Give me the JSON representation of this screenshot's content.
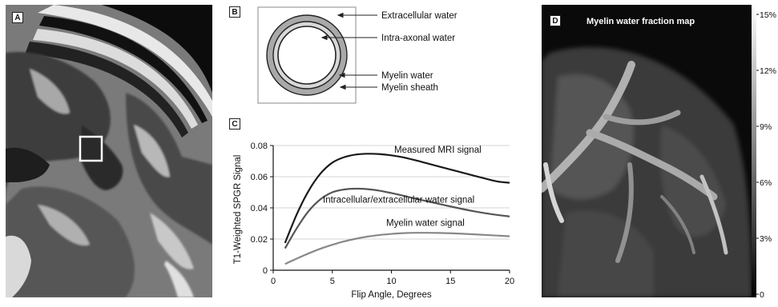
{
  "panels": {
    "a": {
      "label": "A"
    },
    "b": {
      "label": "B",
      "annotations": {
        "extracellular": "Extracellular water",
        "intra_axonal": "Intra-axonal water",
        "myelin_water": "Myelin water",
        "myelin_sheath": "Myelin sheath"
      }
    },
    "c": {
      "label": "C"
    },
    "d": {
      "label": "D",
      "title": "Myelin water fraction map"
    }
  },
  "colorbar": {
    "ticks": [
      "15%",
      "12%",
      "9%",
      "6%",
      "3%",
      "0"
    ]
  },
  "chart_data": {
    "type": "line",
    "xlabel": "Flip Angle, Degrees",
    "ylabel": "T1-Weighted SPGR Signal",
    "xlim": [
      0,
      20
    ],
    "ylim": [
      0,
      0.08
    ],
    "xticks": [
      "0",
      "5",
      "10",
      "15",
      "20"
    ],
    "yticks": [
      "0",
      "0.02",
      "0.04",
      "0.06",
      "0.08"
    ],
    "grid": "horizontal",
    "series": [
      {
        "name": "Measured MRI signal",
        "color": "#1a1a1a",
        "x": [
          1,
          2,
          3,
          4,
          5,
          6,
          7,
          8,
          9,
          10,
          11,
          12,
          13,
          14,
          15,
          16,
          17,
          18,
          19,
          20
        ],
        "y": [
          0.0175,
          0.036,
          0.051,
          0.062,
          0.069,
          0.0725,
          0.0742,
          0.0747,
          0.0745,
          0.0737,
          0.0724,
          0.0706,
          0.0686,
          0.0666,
          0.0646,
          0.0626,
          0.0606,
          0.0587,
          0.0569,
          0.0561
        ]
      },
      {
        "name": "Intracellular/extracellular water signal",
        "color": "#555555",
        "x": [
          1,
          2,
          3,
          4,
          5,
          6,
          7,
          8,
          9,
          10,
          11,
          12,
          13,
          14,
          15,
          16,
          17,
          18,
          19,
          20
        ],
        "y": [
          0.014,
          0.027,
          0.038,
          0.0455,
          0.05,
          0.0518,
          0.0523,
          0.052,
          0.051,
          0.0495,
          0.0478,
          0.046,
          0.0443,
          0.0426,
          0.0409,
          0.0393,
          0.0378,
          0.0365,
          0.0354,
          0.0345
        ]
      },
      {
        "name": "Myelin water signal",
        "color": "#888888",
        "x": [
          1,
          2,
          3,
          4,
          5,
          6,
          7,
          8,
          9,
          10,
          11,
          12,
          13,
          14,
          15,
          16,
          17,
          18,
          19,
          20
        ],
        "y": [
          0.004,
          0.0075,
          0.0108,
          0.0138,
          0.0163,
          0.0185,
          0.0202,
          0.0216,
          0.0226,
          0.0233,
          0.0238,
          0.024,
          0.024,
          0.0239,
          0.0237,
          0.0234,
          0.023,
          0.0226,
          0.0222,
          0.0218
        ]
      }
    ]
  }
}
